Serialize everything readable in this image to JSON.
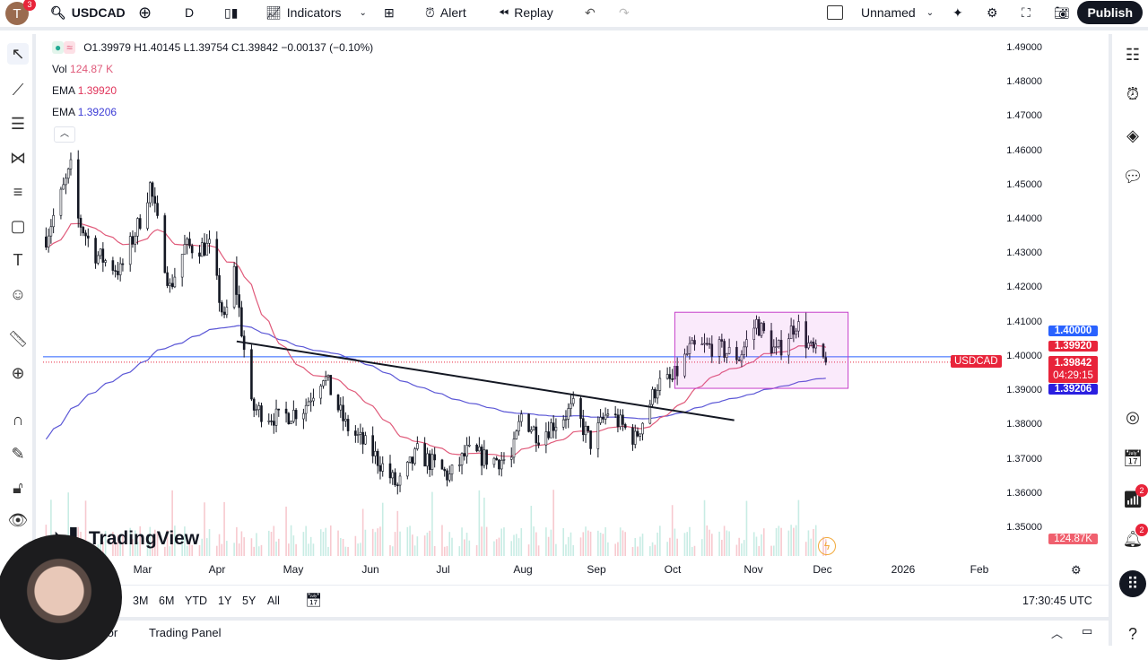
{
  "header": {
    "avatar_letter": "T",
    "notification_count": "3",
    "symbol": "USDCAD",
    "interval": "D",
    "indicators_label": "Indicators",
    "alert_label": "Alert",
    "replay_label": "Replay",
    "layout_name": "Unnamed",
    "publish_label": "Publish"
  },
  "legend": {
    "ohlc": "O1.39979 H1.40145 L1.39754 C1.39842 −0.00137 (−0.10%)",
    "vol_label": "Vol",
    "vol_value": "124.87 K",
    "ema1_label": "EMA",
    "ema1_value": "1.39920",
    "ema2_label": "EMA",
    "ema2_value": "1.39206"
  },
  "price_axis": {
    "labels": [
      "1.49000",
      "1.48000",
      "1.47000",
      "1.46000",
      "1.45000",
      "1.44000",
      "1.43000",
      "1.42000",
      "1.41000",
      "1.40000",
      "1.39000",
      "1.38000",
      "1.37000",
      "1.36000",
      "1.35000"
    ],
    "tags": {
      "level": "1.40000",
      "ema1": "1.39920",
      "symbol": "USDCAD",
      "last": "1.39842",
      "countdown": "04:29:15",
      "ema2": "1.39206",
      "volume": "124.87K"
    }
  },
  "time_axis": {
    "labels": [
      "Mar",
      "Apr",
      "May",
      "Jun",
      "Jul",
      "Aug",
      "Sep",
      "Oct",
      "Nov",
      "Dec",
      "2026",
      "Feb"
    ]
  },
  "watermark": "TradingView",
  "ranges": [
    "3M",
    "6M",
    "YTD",
    "1Y",
    "5Y",
    "All"
  ],
  "clock": "17:30:45 UTC",
  "footer": {
    "tab1": "tor",
    "tab2": "Trading Panel"
  },
  "colors": {
    "up": "#131722",
    "down": "#131722",
    "ema_fast": "#e05a7a",
    "ema_slow": "#5b57d6",
    "rect": "#c53fc9",
    "accent_red": "#e8243a",
    "accent_blue": "#2962ff"
  },
  "chart_data": {
    "type": "candlestick",
    "symbol": "USDCAD",
    "interval": "D",
    "price_path": [
      [
        "2025-01-21",
        1.435
      ],
      [
        "2025-01-31",
        1.455
      ],
      [
        "2025-02-03",
        1.44
      ],
      [
        "2025-02-10",
        1.43
      ],
      [
        "2025-02-20",
        1.425
      ],
      [
        "2025-02-28",
        1.44
      ],
      [
        "2025-03-04",
        1.45
      ],
      [
        "2025-03-12",
        1.42
      ],
      [
        "2025-03-18",
        1.432
      ],
      [
        "2025-03-28",
        1.432
      ],
      [
        "2025-04-03",
        1.41
      ],
      [
        "2025-04-07",
        1.425
      ],
      [
        "2025-04-14",
        1.385
      ],
      [
        "2025-04-25",
        1.382
      ],
      [
        "2025-05-05",
        1.385
      ],
      [
        "2025-05-13",
        1.395
      ],
      [
        "2025-05-22",
        1.38
      ],
      [
        "2025-06-02",
        1.372
      ],
      [
        "2025-06-12",
        1.362
      ],
      [
        "2025-06-20",
        1.372
      ],
      [
        "2025-07-03",
        1.365
      ],
      [
        "2025-07-10",
        1.372
      ],
      [
        "2025-07-20",
        1.37
      ],
      [
        "2025-07-28",
        1.37
      ],
      [
        "2025-08-01",
        1.383
      ],
      [
        "2025-08-08",
        1.377
      ],
      [
        "2025-08-22",
        1.385
      ],
      [
        "2025-08-29",
        1.375
      ],
      [
        "2025-09-05",
        1.384
      ],
      [
        "2025-09-16",
        1.376
      ],
      [
        "2025-09-25",
        1.392
      ],
      [
        "2025-10-01",
        1.393
      ],
      [
        "2025-10-08",
        1.402
      ],
      [
        "2025-10-17",
        1.403
      ],
      [
        "2025-10-28",
        1.4
      ],
      [
        "2025-11-04",
        1.41
      ],
      [
        "2025-11-12",
        1.401
      ],
      [
        "2025-11-20",
        1.41
      ],
      [
        "2025-11-26",
        1.402
      ],
      [
        "2025-12-02",
        1.3984
      ]
    ],
    "trendline": [
      [
        "2025-04-08",
        1.4045
      ],
      [
        "2025-10-26",
        1.3815
      ]
    ],
    "range_box": {
      "from": "2025-10-02",
      "to": "2025-12-11",
      "top": 1.413,
      "bottom": 1.3908
    },
    "horizontal_level": 1.4,
    "ylim": [
      1.345,
      1.495
    ]
  }
}
